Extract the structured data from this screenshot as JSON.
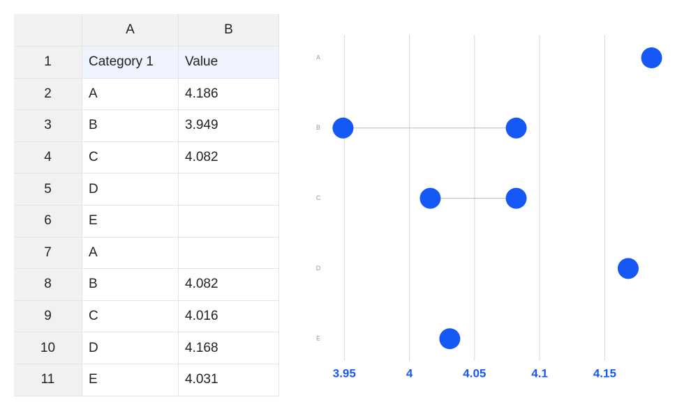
{
  "spreadsheet": {
    "columns": [
      "A",
      "B"
    ],
    "row_numbers": [
      1,
      2,
      3,
      4,
      5,
      6,
      7,
      8,
      9,
      10,
      11
    ],
    "rows": [
      [
        "Category 1",
        "Value"
      ],
      [
        "A",
        4.186
      ],
      [
        "B",
        3.949
      ],
      [
        "C",
        4.082
      ],
      [
        "D",
        null
      ],
      [
        "E",
        null
      ],
      [
        "A",
        null
      ],
      [
        "B",
        4.082
      ],
      [
        "C",
        4.016
      ],
      [
        "D",
        4.168
      ],
      [
        "E",
        4.031
      ]
    ]
  },
  "chart_data": {
    "type": "dot",
    "categories": [
      "A",
      "B",
      "C",
      "D",
      "E"
    ],
    "series": [
      {
        "color": "#1558f6",
        "values": [
          4.186,
          3.949,
          4.082,
          null,
          null
        ]
      },
      {
        "color": "#1558f6",
        "values": [
          null,
          4.082,
          4.016,
          4.168,
          4.031
        ]
      }
    ],
    "xlim": [
      3.93,
      4.19
    ],
    "xticks": [
      3.95,
      4,
      4.05,
      4.1,
      4.15
    ],
    "grid": true
  }
}
